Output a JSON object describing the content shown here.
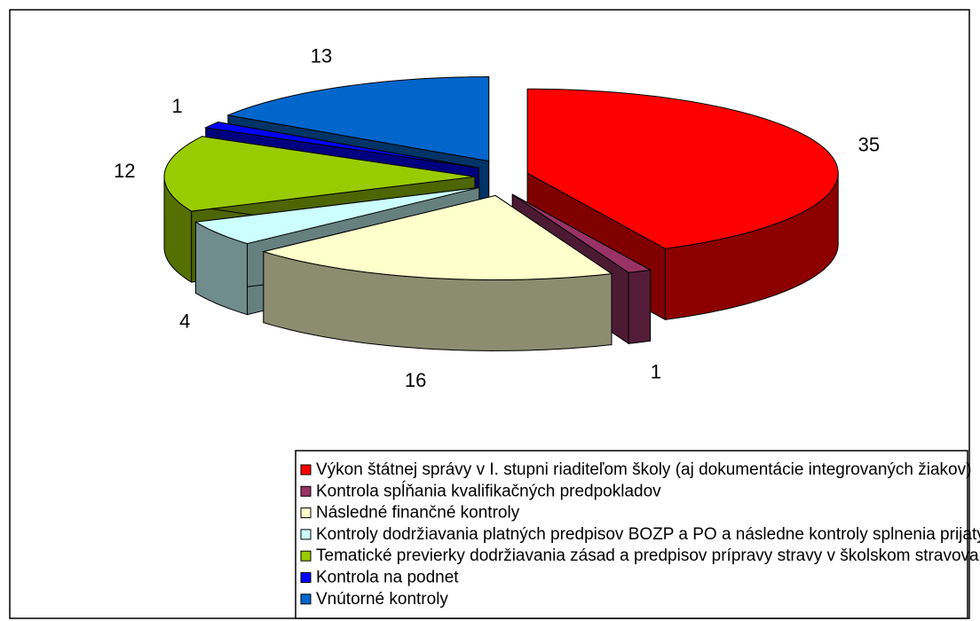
{
  "chart_data": {
    "type": "pie3d",
    "categories": [
      "Výkon štátnej správy v I. stupni riaditeľom školy (aj dokumentácie integrovaných žiakov)",
      "Kontrola spĺňania kvalifikačných predpokladov",
      "Následné finančné kontroly",
      "Kontroly dodržiavania platných predpisov BOZP a PO a následne kontroly splnenia prijatých opatrení",
      "Tematické previerky dodržiavania zásad a predpisov prípravy stravy v školskom stravovaní,",
      "Kontrola na podnet",
      "Vnútorné kontroly"
    ],
    "values": [
      35,
      1,
      16,
      4,
      12,
      1,
      13
    ],
    "colors": [
      "#ff0000",
      "#993366",
      "#ffffcc",
      "#ccffff",
      "#99cc00",
      "#0000ff",
      "#0066cc"
    ],
    "legend": "bottom"
  }
}
